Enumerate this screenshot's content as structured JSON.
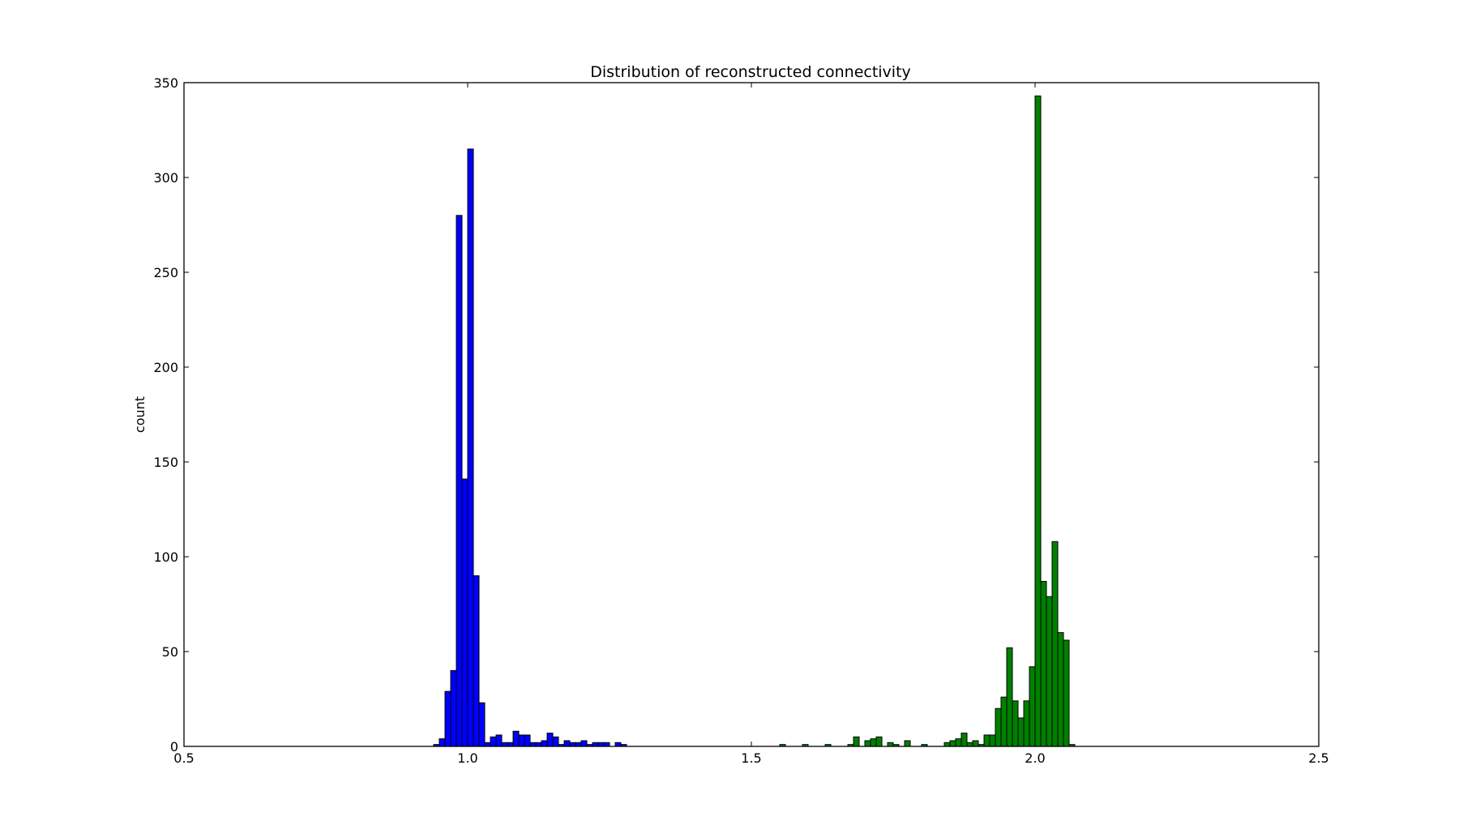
{
  "chart_data": {
    "type": "bar",
    "title": "Distribution of reconstructed connectivity",
    "xlabel": "",
    "ylabel": "count",
    "xlim": [
      0.5,
      2.5
    ],
    "ylim": [
      0,
      350
    ],
    "x_ticks": [
      "0.5",
      "1.0",
      "1.5",
      "2.0",
      "2.5"
    ],
    "y_ticks": [
      "0",
      "50",
      "100",
      "150",
      "200",
      "250",
      "300",
      "350"
    ],
    "grid": false,
    "legend": "none",
    "bin_width": 0.01,
    "series": [
      {
        "color": "#0000ff",
        "bins": [
          [
            0.94,
            1
          ],
          [
            0.95,
            4
          ],
          [
            0.96,
            29
          ],
          [
            0.97,
            40
          ],
          [
            0.98,
            280
          ],
          [
            0.99,
            141
          ],
          [
            1.0,
            315
          ],
          [
            1.01,
            90
          ],
          [
            1.02,
            23
          ],
          [
            1.03,
            2
          ],
          [
            1.04,
            5
          ],
          [
            1.05,
            6
          ],
          [
            1.06,
            2
          ],
          [
            1.07,
            2
          ],
          [
            1.08,
            8
          ],
          [
            1.09,
            6
          ],
          [
            1.1,
            6
          ],
          [
            1.11,
            2
          ],
          [
            1.12,
            2
          ],
          [
            1.13,
            3
          ],
          [
            1.14,
            7
          ],
          [
            1.15,
            5
          ],
          [
            1.16,
            1
          ],
          [
            1.17,
            3
          ],
          [
            1.18,
            2
          ],
          [
            1.19,
            2
          ],
          [
            1.2,
            3
          ],
          [
            1.21,
            1
          ],
          [
            1.22,
            2
          ],
          [
            1.23,
            2
          ],
          [
            1.24,
            2
          ],
          [
            1.25,
            0
          ],
          [
            1.26,
            2
          ],
          [
            1.27,
            1
          ]
        ]
      },
      {
        "color": "#008000",
        "bins": [
          [
            1.55,
            1
          ],
          [
            1.59,
            1
          ],
          [
            1.63,
            1
          ],
          [
            1.67,
            1
          ],
          [
            1.68,
            5
          ],
          [
            1.7,
            3
          ],
          [
            1.71,
            4
          ],
          [
            1.72,
            5
          ],
          [
            1.74,
            2
          ],
          [
            1.75,
            1
          ],
          [
            1.77,
            3
          ],
          [
            1.8,
            1
          ],
          [
            1.84,
            2
          ],
          [
            1.85,
            3
          ],
          [
            1.86,
            4
          ],
          [
            1.87,
            7
          ],
          [
            1.88,
            2
          ],
          [
            1.89,
            3
          ],
          [
            1.9,
            1
          ],
          [
            1.91,
            6
          ],
          [
            1.92,
            6
          ],
          [
            1.93,
            20
          ],
          [
            1.94,
            26
          ],
          [
            1.95,
            52
          ],
          [
            1.96,
            24
          ],
          [
            1.97,
            15
          ],
          [
            1.98,
            24
          ],
          [
            1.99,
            42
          ],
          [
            2.0,
            343
          ],
          [
            2.01,
            87
          ],
          [
            2.02,
            79
          ],
          [
            2.03,
            108
          ],
          [
            2.04,
            60
          ],
          [
            2.05,
            56
          ],
          [
            2.06,
            1
          ]
        ]
      }
    ]
  }
}
